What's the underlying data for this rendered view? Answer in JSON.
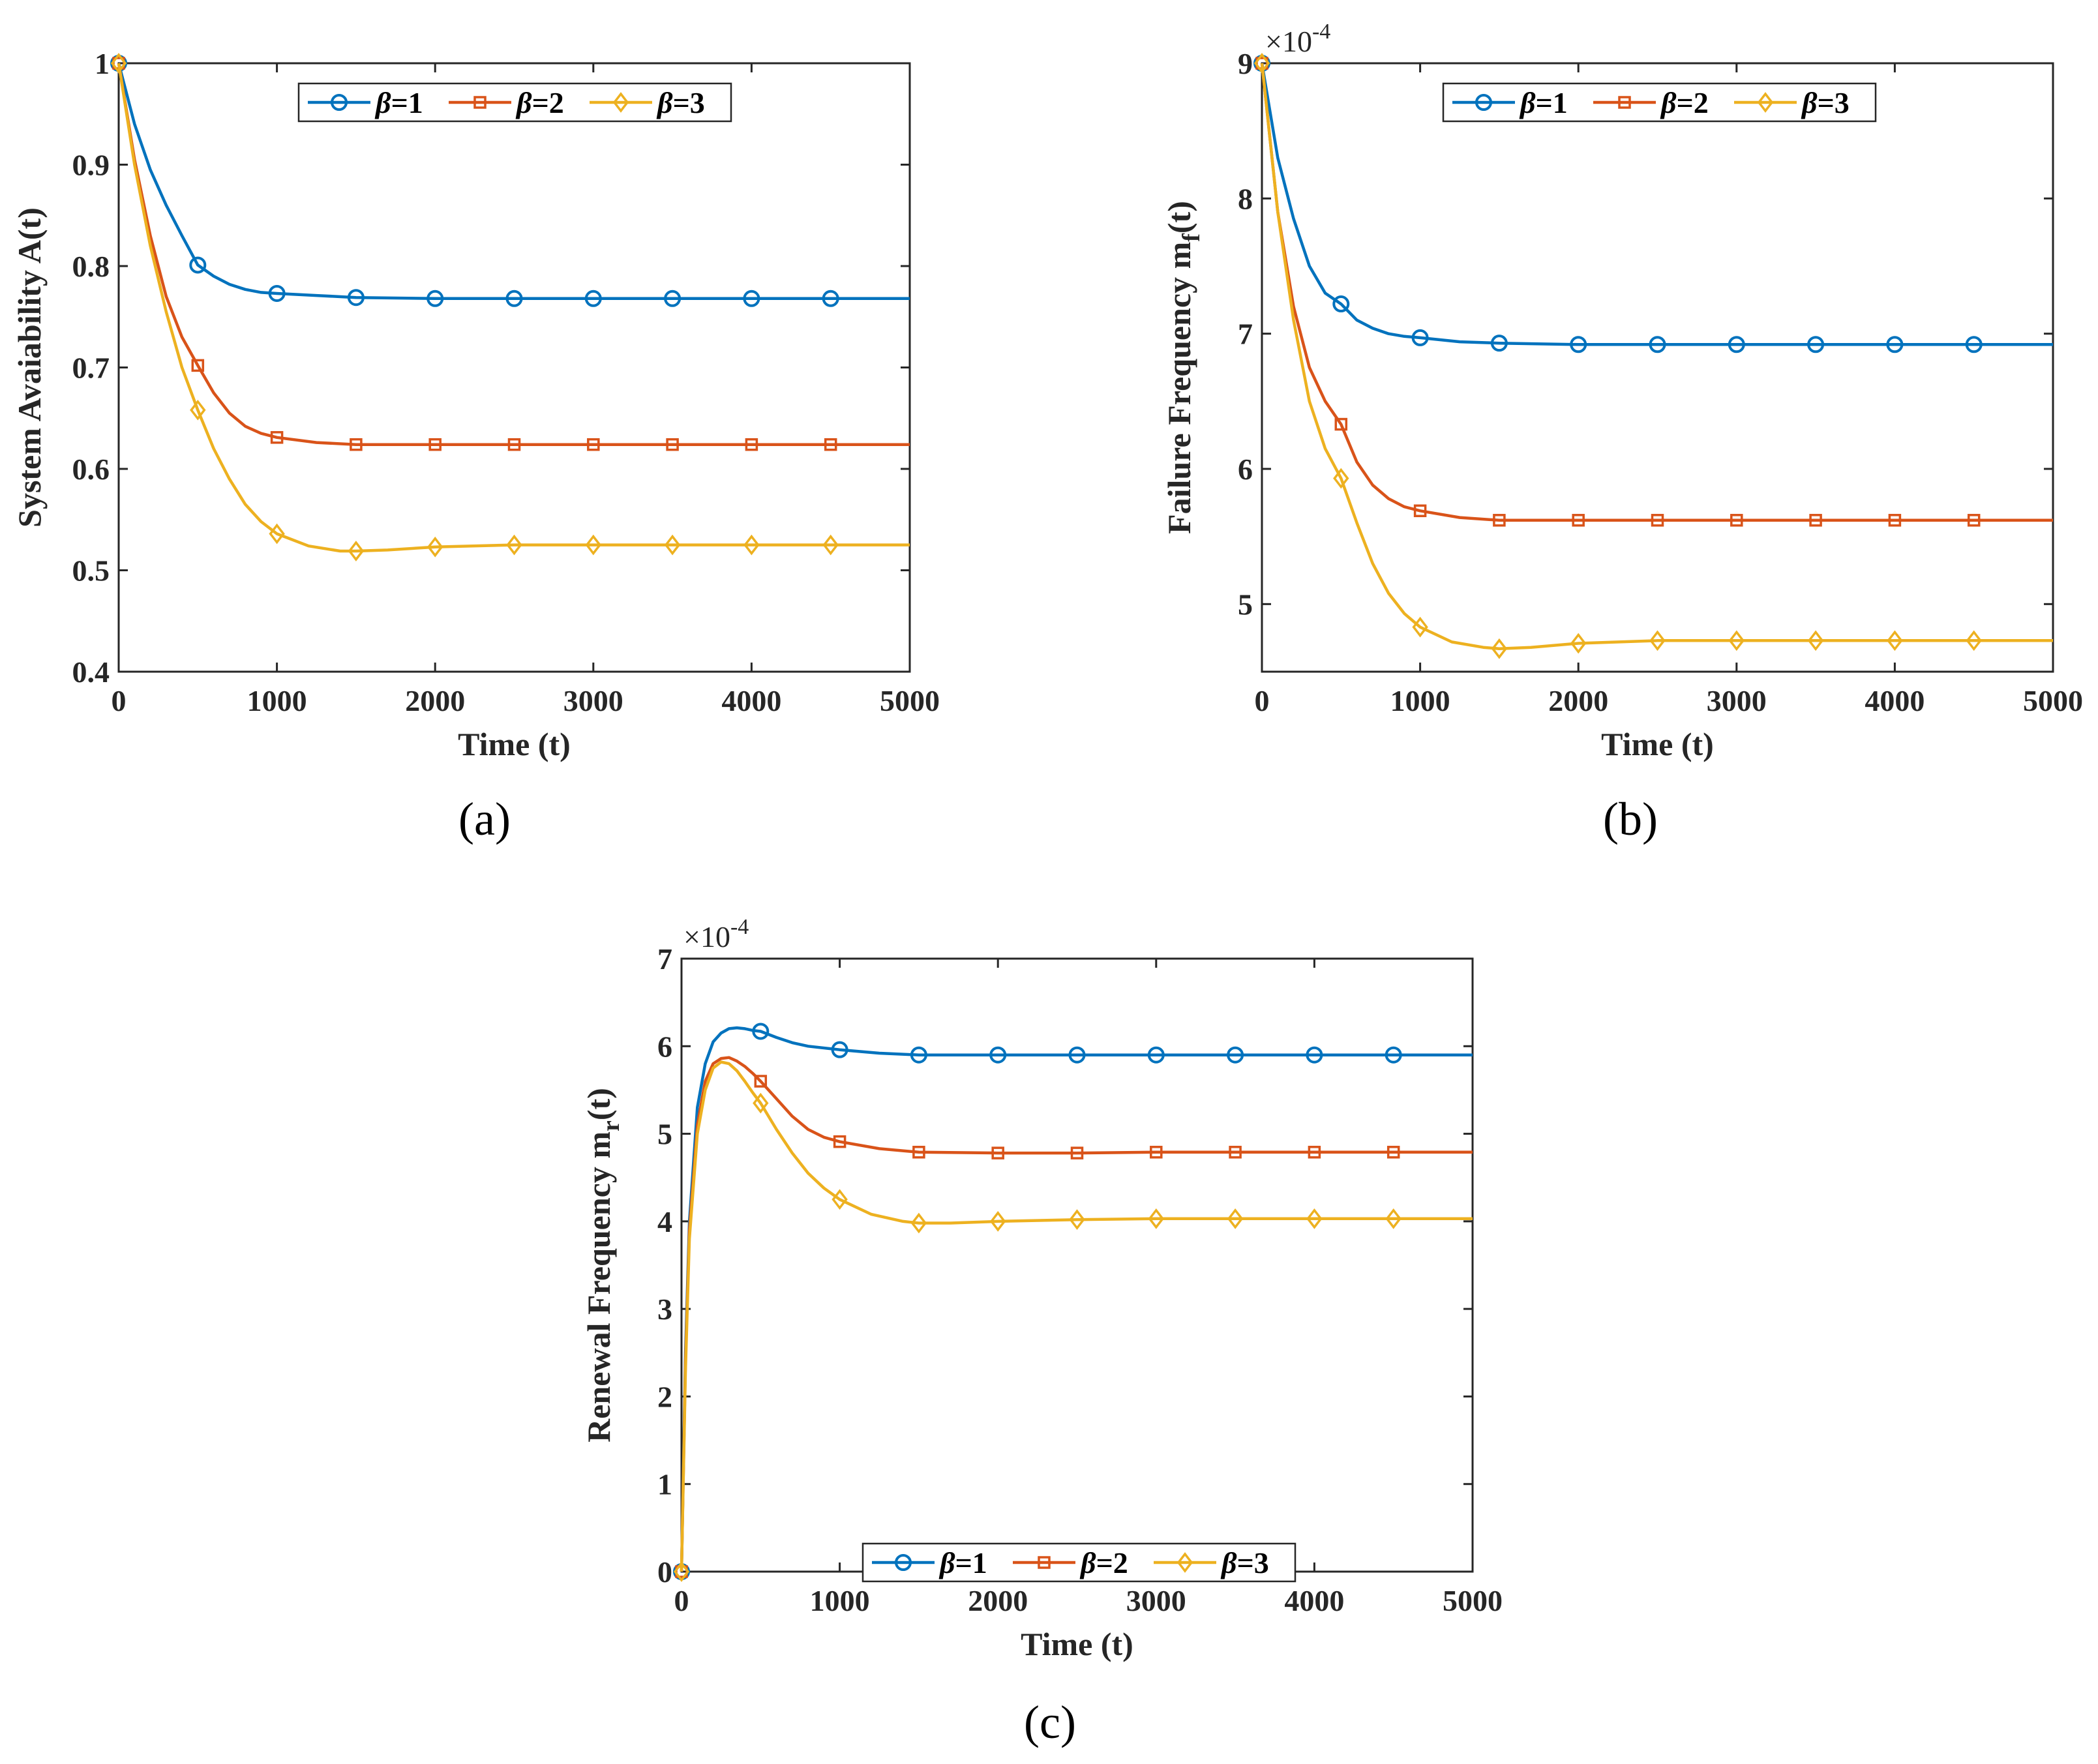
{
  "colors": {
    "beta1": "#0072BD",
    "beta2": "#D95319",
    "beta3": "#EDB120",
    "axis": "#262626"
  },
  "chart_data": [
    {
      "type": "line",
      "panel_label": "(a)",
      "xlabel": "Time (t)",
      "ylabel": "System Avaiability A(t)",
      "exponent_label": "",
      "xlim": [
        0,
        5000
      ],
      "ylim": [
        0.4,
        1
      ],
      "xticks": [
        0,
        1000,
        2000,
        3000,
        4000,
        5000
      ],
      "xtick_labels": [
        "0",
        "1000",
        "2000",
        "3000",
        "4000",
        "5000"
      ],
      "yticks": [
        0.4,
        0.5,
        0.6,
        0.7,
        0.8,
        0.9,
        1
      ],
      "ytick_labels": [
        "0.4",
        "0.5",
        "0.6",
        "0.7",
        "0.8",
        "0.9",
        "1"
      ],
      "legend": {
        "placement": "top-center",
        "labels": [
          "β=1",
          "β=2",
          "β=3"
        ]
      },
      "series": [
        {
          "name": "β=1",
          "color_key": "beta1",
          "marker": "circle",
          "x": [
            0,
            100,
            200,
            300,
            400,
            500,
            600,
            700,
            800,
            900,
            1000,
            1250,
            1500,
            2000,
            2500,
            3000,
            3500,
            4000,
            4500,
            5000
          ],
          "y": [
            1.0,
            0.94,
            0.895,
            0.86,
            0.83,
            0.801,
            0.79,
            0.782,
            0.777,
            0.774,
            0.773,
            0.771,
            0.769,
            0.768,
            0.768,
            0.768,
            0.768,
            0.768,
            0.768,
            0.768
          ],
          "marker_x": [
            0,
            500,
            1000,
            1500,
            2000,
            2500,
            3000,
            3500,
            4000,
            4500
          ],
          "marker_y": [
            1.0,
            0.801,
            0.773,
            0.769,
            0.768,
            0.768,
            0.768,
            0.768,
            0.768,
            0.768
          ]
        },
        {
          "name": "β=2",
          "color_key": "beta2",
          "marker": "square",
          "x": [
            0,
            100,
            200,
            300,
            400,
            500,
            600,
            700,
            800,
            900,
            1000,
            1250,
            1500,
            2000,
            2500,
            3000,
            3500,
            4000,
            4500,
            5000
          ],
          "y": [
            1.0,
            0.905,
            0.83,
            0.77,
            0.73,
            0.702,
            0.675,
            0.655,
            0.642,
            0.635,
            0.631,
            0.626,
            0.624,
            0.624,
            0.624,
            0.624,
            0.624,
            0.624,
            0.624,
            0.624
          ],
          "marker_x": [
            0,
            500,
            1000,
            1500,
            2000,
            2500,
            3000,
            3500,
            4000,
            4500
          ],
          "marker_y": [
            1.0,
            0.702,
            0.631,
            0.624,
            0.624,
            0.624,
            0.624,
            0.624,
            0.624,
            0.624
          ]
        },
        {
          "name": "β=3",
          "color_key": "beta3",
          "marker": "diamond",
          "x": [
            0,
            100,
            200,
            300,
            400,
            500,
            600,
            700,
            800,
            900,
            1000,
            1200,
            1400,
            1500,
            1700,
            2000,
            2500,
            3000,
            3500,
            4000,
            4500,
            5000
          ],
          "y": [
            1.0,
            0.9,
            0.82,
            0.755,
            0.7,
            0.658,
            0.62,
            0.59,
            0.565,
            0.548,
            0.536,
            0.524,
            0.519,
            0.519,
            0.52,
            0.523,
            0.525,
            0.525,
            0.525,
            0.525,
            0.525,
            0.525
          ],
          "marker_x": [
            0,
            500,
            1000,
            1500,
            2000,
            2500,
            3000,
            3500,
            4000,
            4500
          ],
          "marker_y": [
            1.0,
            0.658,
            0.536,
            0.519,
            0.523,
            0.525,
            0.525,
            0.525,
            0.525,
            0.525
          ]
        }
      ]
    },
    {
      "type": "line",
      "panel_label": "(b)",
      "xlabel": "Time (t)",
      "ylabel": "Failure Frequency m",
      "ylabel_sub": "f",
      "ylabel_tail": "(t)",
      "exponent_label": "×10",
      "exponent_power": "-4",
      "xlim": [
        0,
        5000
      ],
      "ylim": [
        4.5,
        9
      ],
      "xticks": [
        0,
        1000,
        2000,
        3000,
        4000,
        5000
      ],
      "xtick_labels": [
        "0",
        "1000",
        "2000",
        "3000",
        "4000",
        "5000"
      ],
      "yticks": [
        5,
        6,
        7,
        8,
        9
      ],
      "ytick_labels": [
        "5",
        "6",
        "7",
        "8",
        "9"
      ],
      "legend": {
        "placement": "top-center",
        "labels": [
          "β=1",
          "β=2",
          "β=3"
        ]
      },
      "series": [
        {
          "name": "β=1",
          "color_key": "beta1",
          "marker": "circle",
          "x": [
            0,
            100,
            200,
            300,
            400,
            500,
            600,
            700,
            800,
            900,
            1000,
            1250,
            1500,
            2000,
            2500,
            3000,
            3500,
            4000,
            4500,
            5000
          ],
          "y": [
            9.0,
            8.3,
            7.85,
            7.5,
            7.3,
            7.22,
            7.1,
            7.04,
            7.0,
            6.98,
            6.97,
            6.94,
            6.93,
            6.92,
            6.92,
            6.92,
            6.92,
            6.92,
            6.92,
            6.92
          ],
          "marker_x": [
            0,
            500,
            1000,
            1500,
            2000,
            2500,
            3000,
            3500,
            4000,
            4500
          ],
          "marker_y": [
            9.0,
            7.22,
            6.97,
            6.93,
            6.92,
            6.92,
            6.92,
            6.92,
            6.92,
            6.92
          ]
        },
        {
          "name": "β=2",
          "color_key": "beta2",
          "marker": "square",
          "x": [
            0,
            100,
            200,
            300,
            400,
            500,
            600,
            700,
            800,
            900,
            1000,
            1250,
            1500,
            2000,
            2500,
            3000,
            3500,
            4000,
            4500,
            5000
          ],
          "y": [
            9.0,
            7.9,
            7.2,
            6.75,
            6.5,
            6.33,
            6.05,
            5.88,
            5.78,
            5.72,
            5.69,
            5.64,
            5.62,
            5.62,
            5.62,
            5.62,
            5.62,
            5.62,
            5.62,
            5.62
          ],
          "marker_x": [
            0,
            500,
            1000,
            1500,
            2000,
            2500,
            3000,
            3500,
            4000,
            4500
          ],
          "marker_y": [
            9.0,
            6.33,
            5.69,
            5.62,
            5.62,
            5.62,
            5.62,
            5.62,
            5.62,
            5.62
          ]
        },
        {
          "name": "β=3",
          "color_key": "beta3",
          "marker": "diamond",
          "x": [
            0,
            100,
            200,
            300,
            400,
            500,
            600,
            700,
            800,
            900,
            1000,
            1200,
            1400,
            1500,
            1700,
            2000,
            2500,
            3000,
            3500,
            4000,
            4500,
            5000
          ],
          "y": [
            9.0,
            7.9,
            7.1,
            6.5,
            6.15,
            5.93,
            5.6,
            5.3,
            5.08,
            4.93,
            4.83,
            4.72,
            4.68,
            4.67,
            4.68,
            4.71,
            4.73,
            4.73,
            4.73,
            4.73,
            4.73,
            4.73
          ],
          "marker_x": [
            0,
            500,
            1000,
            1500,
            2000,
            2500,
            3000,
            3500,
            4000,
            4500
          ],
          "marker_y": [
            9.0,
            5.93,
            4.83,
            4.67,
            4.71,
            4.73,
            4.73,
            4.73,
            4.73,
            4.73
          ]
        }
      ]
    },
    {
      "type": "line",
      "panel_label": "(c)",
      "xlabel": "Time (t)",
      "ylabel": "Renewal Frequency m",
      "ylabel_sub": "r",
      "ylabel_tail": "(t)",
      "exponent_label": "×10",
      "exponent_power": "-4",
      "xlim": [
        0,
        5000
      ],
      "ylim": [
        0,
        7
      ],
      "xticks": [
        0,
        1000,
        2000,
        3000,
        4000,
        5000
      ],
      "xtick_labels": [
        "0",
        "1000",
        "2000",
        "3000",
        "4000",
        "5000"
      ],
      "yticks": [
        0,
        1,
        2,
        3,
        4,
        5,
        6,
        7
      ],
      "ytick_labels": [
        "0",
        "1",
        "2",
        "3",
        "4",
        "5",
        "6",
        "7"
      ],
      "legend": {
        "placement": "bottom-center",
        "labels": [
          "β=1",
          "β=2",
          "β=3"
        ]
      },
      "series": [
        {
          "name": "β=1",
          "color_key": "beta1",
          "marker": "circle",
          "x": [
            0,
            25,
            50,
            100,
            150,
            200,
            250,
            300,
            350,
            400,
            450,
            500,
            600,
            700,
            800,
            1000,
            1250,
            1500,
            2000,
            2500,
            3000,
            3500,
            4000,
            4500,
            5000
          ],
          "y": [
            0,
            2.5,
            4.0,
            5.3,
            5.8,
            6.05,
            6.15,
            6.2,
            6.21,
            6.2,
            6.18,
            6.17,
            6.1,
            6.04,
            6.0,
            5.96,
            5.92,
            5.9,
            5.9,
            5.9,
            5.9,
            5.9,
            5.9,
            5.9,
            5.9
          ],
          "marker_x": [
            0,
            500,
            1000,
            1500,
            2000,
            2500,
            3000,
            3500,
            4000,
            4500
          ],
          "marker_y": [
            0,
            6.17,
            5.96,
            5.9,
            5.9,
            5.9,
            5.9,
            5.9,
            5.9,
            5.9
          ]
        },
        {
          "name": "β=2",
          "color_key": "beta2",
          "marker": "square",
          "x": [
            0,
            25,
            50,
            100,
            150,
            200,
            250,
            300,
            350,
            400,
            450,
            500,
            600,
            700,
            800,
            900,
            1000,
            1250,
            1500,
            2000,
            2500,
            3000,
            3500,
            4000,
            4500,
            5000
          ],
          "y": [
            0,
            2.4,
            3.9,
            5.1,
            5.6,
            5.8,
            5.86,
            5.87,
            5.83,
            5.77,
            5.69,
            5.6,
            5.4,
            5.2,
            5.05,
            4.96,
            4.91,
            4.83,
            4.79,
            4.78,
            4.78,
            4.79,
            4.79,
            4.79,
            4.79,
            4.79
          ],
          "marker_x": [
            0,
            500,
            1000,
            1500,
            2000,
            2500,
            3000,
            3500,
            4000,
            4500
          ],
          "marker_y": [
            0,
            5.6,
            4.91,
            4.79,
            4.78,
            4.78,
            4.79,
            4.79,
            4.79,
            4.79
          ]
        },
        {
          "name": "β=3",
          "color_key": "beta3",
          "marker": "diamond",
          "x": [
            0,
            25,
            50,
            100,
            150,
            200,
            250,
            300,
            350,
            400,
            450,
            500,
            600,
            700,
            800,
            900,
            1000,
            1200,
            1400,
            1500,
            1700,
            2000,
            2500,
            3000,
            3500,
            4000,
            4500,
            5000
          ],
          "y": [
            0,
            2.3,
            3.8,
            5.0,
            5.5,
            5.75,
            5.82,
            5.8,
            5.72,
            5.6,
            5.47,
            5.35,
            5.05,
            4.78,
            4.55,
            4.38,
            4.25,
            4.08,
            4.0,
            3.98,
            3.98,
            4.0,
            4.02,
            4.03,
            4.03,
            4.03,
            4.03,
            4.03
          ],
          "marker_x": [
            0,
            500,
            1000,
            1500,
            2000,
            2500,
            3000,
            3500,
            4000,
            4500
          ],
          "marker_y": [
            0,
            5.35,
            4.25,
            3.98,
            4.0,
            4.02,
            4.03,
            4.03,
            4.03,
            4.03
          ]
        }
      ]
    }
  ]
}
